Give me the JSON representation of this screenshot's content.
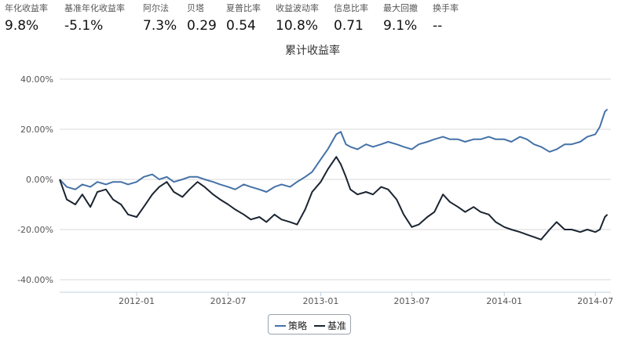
{
  "metrics": [
    {
      "label": "年化收益率",
      "value": "9.8%"
    },
    {
      "label": "基准年化收益率",
      "value": "-5.1%"
    },
    {
      "label": "阿尔法",
      "value": "7.3%"
    },
    {
      "label": "贝塔",
      "value": "0.29"
    },
    {
      "label": "夏普比率",
      "value": "0.54"
    },
    {
      "label": "收益波动率",
      "value": "10.8%"
    },
    {
      "label": "信息比率",
      "value": "0.71"
    },
    {
      "label": "最大回撤",
      "value": "9.1%"
    },
    {
      "label": "换手率",
      "value": "--"
    }
  ],
  "colors": {
    "strategy": "#4572a7",
    "benchmark": "#1b2431",
    "grid": "#d8d8d8",
    "axis": "#c0d0e0"
  },
  "chart_data": {
    "type": "line",
    "title": "累计收益率",
    "y_ticks": [
      "40.00%",
      "20.00%",
      "0.00%",
      "-20.00%",
      "-40.00%"
    ],
    "ylim": [
      -45,
      45
    ],
    "x_ticks": [
      "2012-01",
      "2012-07",
      "2013-01",
      "2013-07",
      "2014-01",
      "2014-07"
    ],
    "xlim": [
      "2011-08-01",
      "2014-08-01"
    ],
    "legend_position": "bottom-center",
    "series": [
      {
        "name": "策略",
        "color": "#4572a7",
        "points": [
          [
            "2011-08-01",
            0
          ],
          [
            "2011-08-15",
            -3
          ],
          [
            "2011-09-01",
            -4
          ],
          [
            "2011-09-15",
            -2
          ],
          [
            "2011-10-01",
            -3
          ],
          [
            "2011-10-15",
            -1
          ],
          [
            "2011-11-01",
            -2
          ],
          [
            "2011-11-15",
            -1
          ],
          [
            "2011-12-01",
            -1
          ],
          [
            "2011-12-15",
            -2
          ],
          [
            "2012-01-01",
            -1
          ],
          [
            "2012-01-15",
            1
          ],
          [
            "2012-02-01",
            2
          ],
          [
            "2012-02-15",
            0
          ],
          [
            "2012-03-01",
            1
          ],
          [
            "2012-03-15",
            -1
          ],
          [
            "2012-04-01",
            0
          ],
          [
            "2012-04-15",
            1
          ],
          [
            "2012-05-01",
            1
          ],
          [
            "2012-05-15",
            0
          ],
          [
            "2012-06-01",
            -1
          ],
          [
            "2012-06-15",
            -2
          ],
          [
            "2012-07-01",
            -3
          ],
          [
            "2012-07-15",
            -4
          ],
          [
            "2012-08-01",
            -2
          ],
          [
            "2012-08-15",
            -3
          ],
          [
            "2012-09-01",
            -4
          ],
          [
            "2012-09-15",
            -5
          ],
          [
            "2012-10-01",
            -3
          ],
          [
            "2012-10-15",
            -2
          ],
          [
            "2012-11-01",
            -3
          ],
          [
            "2012-11-15",
            -1
          ],
          [
            "2012-12-01",
            1
          ],
          [
            "2012-12-15",
            3
          ],
          [
            "2013-01-01",
            8
          ],
          [
            "2013-01-15",
            12
          ],
          [
            "2013-02-01",
            18
          ],
          [
            "2013-02-10",
            19
          ],
          [
            "2013-02-20",
            14
          ],
          [
            "2013-03-01",
            13
          ],
          [
            "2013-03-15",
            12
          ],
          [
            "2013-04-01",
            14
          ],
          [
            "2013-04-15",
            13
          ],
          [
            "2013-05-01",
            14
          ],
          [
            "2013-05-15",
            15
          ],
          [
            "2013-06-01",
            14
          ],
          [
            "2013-06-15",
            13
          ],
          [
            "2013-07-01",
            12
          ],
          [
            "2013-07-15",
            14
          ],
          [
            "2013-08-01",
            15
          ],
          [
            "2013-08-15",
            16
          ],
          [
            "2013-09-01",
            17
          ],
          [
            "2013-09-15",
            16
          ],
          [
            "2013-10-01",
            16
          ],
          [
            "2013-10-15",
            15
          ],
          [
            "2013-11-01",
            16
          ],
          [
            "2013-11-15",
            16
          ],
          [
            "2013-12-01",
            17
          ],
          [
            "2013-12-15",
            16
          ],
          [
            "2014-01-01",
            16
          ],
          [
            "2014-01-15",
            15
          ],
          [
            "2014-02-01",
            17
          ],
          [
            "2014-02-15",
            16
          ],
          [
            "2014-03-01",
            14
          ],
          [
            "2014-03-15",
            13
          ],
          [
            "2014-04-01",
            11
          ],
          [
            "2014-04-15",
            12
          ],
          [
            "2014-05-01",
            14
          ],
          [
            "2014-05-15",
            14
          ],
          [
            "2014-06-01",
            15
          ],
          [
            "2014-06-15",
            17
          ],
          [
            "2014-07-01",
            18
          ],
          [
            "2014-07-10",
            21
          ],
          [
            "2014-07-20",
            27
          ],
          [
            "2014-07-25",
            28
          ]
        ]
      },
      {
        "name": "基准",
        "color": "#1b2431",
        "points": [
          [
            "2011-08-01",
            0
          ],
          [
            "2011-08-15",
            -8
          ],
          [
            "2011-09-01",
            -10
          ],
          [
            "2011-09-15",
            -6
          ],
          [
            "2011-10-01",
            -11
          ],
          [
            "2011-10-15",
            -5
          ],
          [
            "2011-11-01",
            -4
          ],
          [
            "2011-11-15",
            -8
          ],
          [
            "2011-12-01",
            -10
          ],
          [
            "2011-12-15",
            -14
          ],
          [
            "2012-01-01",
            -15
          ],
          [
            "2012-01-15",
            -11
          ],
          [
            "2012-02-01",
            -6
          ],
          [
            "2012-02-15",
            -3
          ],
          [
            "2012-03-01",
            -1
          ],
          [
            "2012-03-15",
            -5
          ],
          [
            "2012-04-01",
            -7
          ],
          [
            "2012-04-15",
            -4
          ],
          [
            "2012-05-01",
            -1
          ],
          [
            "2012-05-15",
            -3
          ],
          [
            "2012-06-01",
            -6
          ],
          [
            "2012-06-15",
            -8
          ],
          [
            "2012-07-01",
            -10
          ],
          [
            "2012-07-15",
            -12
          ],
          [
            "2012-08-01",
            -14
          ],
          [
            "2012-08-15",
            -16
          ],
          [
            "2012-09-01",
            -15
          ],
          [
            "2012-09-15",
            -17
          ],
          [
            "2012-10-01",
            -14
          ],
          [
            "2012-10-15",
            -16
          ],
          [
            "2012-11-01",
            -17
          ],
          [
            "2012-11-15",
            -18
          ],
          [
            "2012-12-01",
            -12
          ],
          [
            "2012-12-15",
            -5
          ],
          [
            "2013-01-01",
            -1
          ],
          [
            "2013-01-15",
            4
          ],
          [
            "2013-02-01",
            9
          ],
          [
            "2013-02-10",
            6
          ],
          [
            "2013-02-20",
            1
          ],
          [
            "2013-03-01",
            -4
          ],
          [
            "2013-03-15",
            -6
          ],
          [
            "2013-04-01",
            -5
          ],
          [
            "2013-04-15",
            -6
          ],
          [
            "2013-05-01",
            -3
          ],
          [
            "2013-05-15",
            -4
          ],
          [
            "2013-06-01",
            -8
          ],
          [
            "2013-06-15",
            -14
          ],
          [
            "2013-07-01",
            -19
          ],
          [
            "2013-07-15",
            -18
          ],
          [
            "2013-08-01",
            -15
          ],
          [
            "2013-08-15",
            -13
          ],
          [
            "2013-09-01",
            -6
          ],
          [
            "2013-09-15",
            -9
          ],
          [
            "2013-10-01",
            -11
          ],
          [
            "2013-10-15",
            -13
          ],
          [
            "2013-11-01",
            -11
          ],
          [
            "2013-11-15",
            -13
          ],
          [
            "2013-12-01",
            -14
          ],
          [
            "2013-12-15",
            -17
          ],
          [
            "2014-01-01",
            -19
          ],
          [
            "2014-01-15",
            -20
          ],
          [
            "2014-02-01",
            -21
          ],
          [
            "2014-02-15",
            -22
          ],
          [
            "2014-03-01",
            -23
          ],
          [
            "2014-03-15",
            -24
          ],
          [
            "2014-04-01",
            -20
          ],
          [
            "2014-04-15",
            -17
          ],
          [
            "2014-05-01",
            -20
          ],
          [
            "2014-05-15",
            -20
          ],
          [
            "2014-06-01",
            -21
          ],
          [
            "2014-06-15",
            -20
          ],
          [
            "2014-07-01",
            -21
          ],
          [
            "2014-07-10",
            -20
          ],
          [
            "2014-07-20",
            -15
          ],
          [
            "2014-07-25",
            -14
          ]
        ]
      }
    ]
  }
}
